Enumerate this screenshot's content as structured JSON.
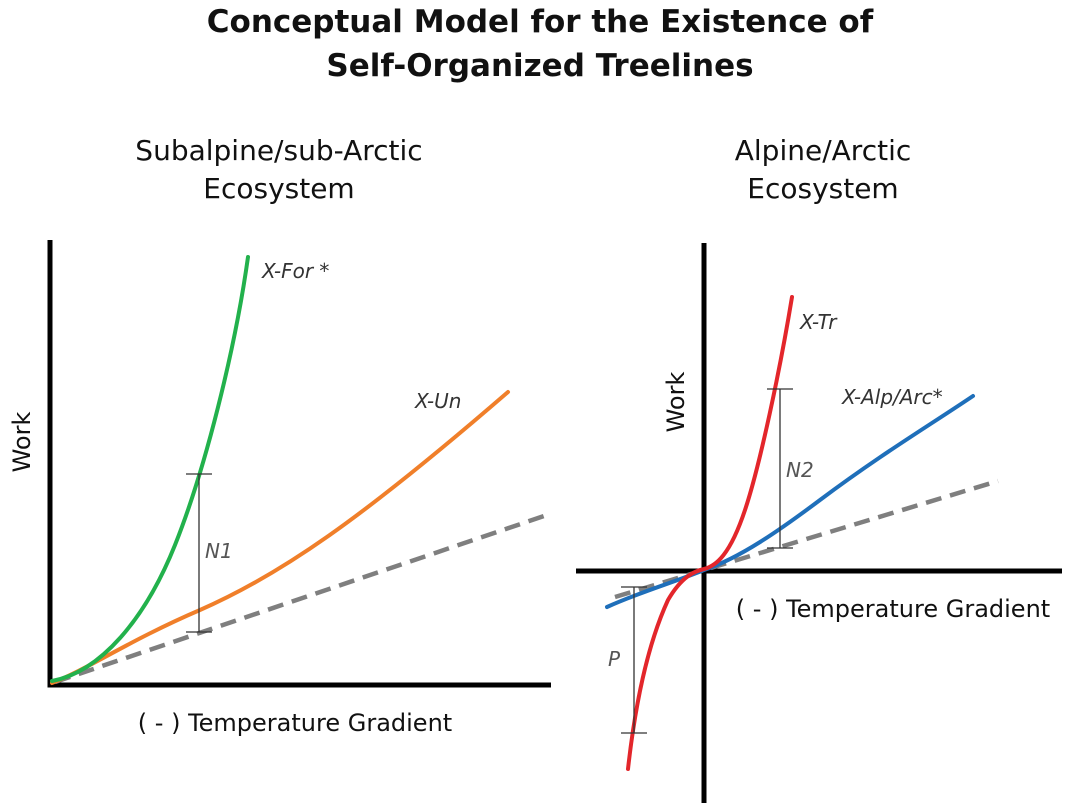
{
  "title": {
    "line1": "Conceptual Model for the Existence of",
    "line2": "Self-Organized Treelines"
  },
  "panels": {
    "left": {
      "title_line1": "Subalpine/sub-Arctic",
      "title_line2": "Ecosystem",
      "ylabel": "Work",
      "xlabel": "( - ) Temperature Gradient",
      "curves": [
        {
          "label": "X-For *",
          "color": "#22b14c"
        },
        {
          "label": "X-Un",
          "color": "#f07f2a"
        }
      ],
      "reference_line": {
        "style": "dashed",
        "color": "#7f7f7f"
      },
      "gap_label": "N1"
    },
    "right": {
      "title_line1": "Alpine/Arctic",
      "title_line2": "Ecosystem",
      "ylabel": "Work",
      "xlabel": "( - ) Temperature Gradient",
      "curves": [
        {
          "label": "X-Tr",
          "color": "#e3262b"
        },
        {
          "label": "X-Alp/Arc*",
          "color": "#1f6fba"
        }
      ],
      "reference_line": {
        "style": "dashed",
        "color": "#7f7f7f"
      },
      "gap_labels": {
        "upper": "N2",
        "lower": "P"
      }
    }
  }
}
